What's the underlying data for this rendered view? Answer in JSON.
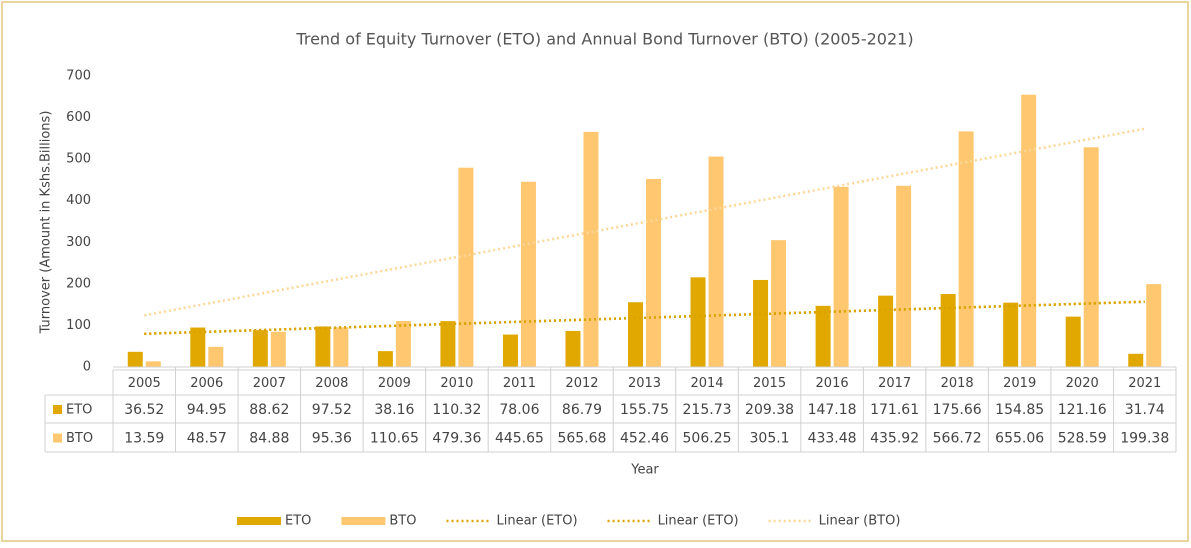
{
  "chart_data": {
    "type": "bar",
    "title": "Trend of Equity Turnover (ETO) and Annual Bond Turnover (BTO) (2005-2021)",
    "x_label": "Year",
    "y_label": "Turnover (Amount in Kshs.Billions)",
    "categories": [
      "2005",
      "2006",
      "2007",
      "2008",
      "2009",
      "2010",
      "2011",
      "2012",
      "2013",
      "2014",
      "2015",
      "2016",
      "2017",
      "2018",
      "2019",
      "2020",
      "2021"
    ],
    "series": [
      {
        "name": "ETO",
        "color": "#e0a800",
        "values": [
          36.52,
          94.95,
          88.62,
          97.52,
          38.16,
          110.32,
          78.06,
          86.79,
          155.75,
          215.73,
          209.38,
          147.18,
          171.61,
          175.66,
          154.85,
          121.16,
          31.74
        ]
      },
      {
        "name": "BTO",
        "color": "#ffc870",
        "values": [
          13.59,
          48.57,
          84.88,
          95.36,
          110.65,
          479.36,
          445.65,
          565.68,
          452.46,
          506.25,
          305.1,
          433.48,
          435.92,
          566.72,
          655.06,
          528.59,
          199.38
        ]
      }
    ],
    "trendlines": [
      {
        "name": "Linear (ETO)",
        "series": 0,
        "color": "#d9a400"
      },
      {
        "name": "Linear (ETO)",
        "series": 0,
        "color": "#d9a400"
      },
      {
        "name": "Linear (BTO)",
        "series": 1,
        "color": "#fcd699"
      }
    ],
    "ylim": [
      0,
      700
    ],
    "yticks": [
      0,
      100,
      200,
      300,
      400,
      500,
      600,
      700
    ],
    "grid": false,
    "data_table": true,
    "legend": "bottom"
  }
}
